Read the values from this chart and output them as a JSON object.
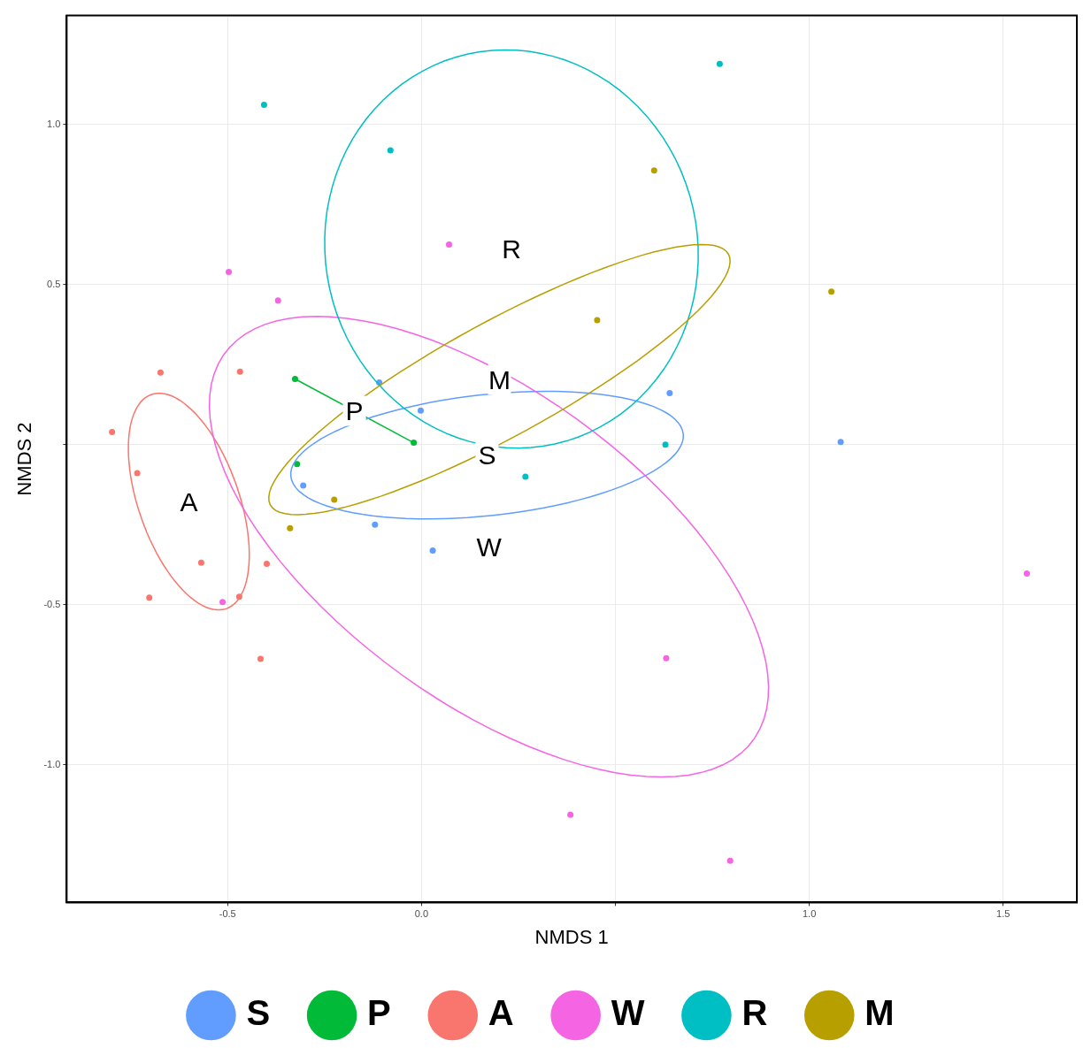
{
  "chart_data": {
    "type": "scatter",
    "xlabel": "NMDS 1",
    "ylabel": "NMDS 2",
    "xlim": [
      -0.915,
      1.69
    ],
    "ylim": [
      -1.43,
      1.34
    ],
    "xticks": [
      -0.5,
      {
        "value": 0,
        "label": "0.0"
      },
      {
        "value": 0.5,
        "label": null
      },
      {
        "value": 1,
        "label": "1.0"
      },
      1.5
    ],
    "yticks": [
      {
        "value": -1,
        "label": "-1.0"
      },
      -0.5,
      {
        "value": 0,
        "label": null
      },
      0.5,
      {
        "value": 1,
        "label": "1.0"
      }
    ],
    "grid": true,
    "legend": "bottom",
    "series": [
      {
        "name": "S",
        "marker": "circle",
        "color": "#619cff",
        "x": [
          -0.109,
          -0.002,
          0.64,
          1.081,
          -0.305,
          -0.12,
          0.029
        ],
        "values": [
          0.194,
          0.106,
          0.161,
          0.008,
          -0.128,
          -0.25,
          -0.331
        ]
      },
      {
        "name": "P",
        "marker": "circle",
        "color": "#00ba38",
        "x": [
          -0.326,
          -0.02,
          -0.321
        ],
        "values": [
          0.205,
          0.006,
          -0.061
        ]
      },
      {
        "name": "A",
        "marker": "circle",
        "color": "#f8766d",
        "x": [
          -0.798,
          -0.673,
          -0.468,
          -0.733,
          -0.568,
          -0.702,
          -0.47,
          -0.399,
          -0.415
        ],
        "values": [
          0.039,
          0.225,
          0.228,
          -0.089,
          -0.369,
          -0.478,
          -0.475,
          -0.372,
          -0.669
        ]
      },
      {
        "name": "W",
        "marker": "circle",
        "color": "#f564e3",
        "x": [
          -0.497,
          -0.37,
          0.071,
          -0.513,
          0.384,
          0.796,
          0.631,
          1.561
        ],
        "values": [
          0.539,
          0.45,
          0.625,
          -0.492,
          -1.156,
          -1.3,
          -0.667,
          -0.403
        ]
      },
      {
        "name": "R",
        "marker": "circle",
        "color": "#00bfc4",
        "x": [
          -0.406,
          -0.08,
          0.769,
          0.629,
          0.268
        ],
        "values": [
          1.061,
          0.919,
          1.189,
          0.0,
          -0.1
        ]
      },
      {
        "name": "M",
        "marker": "circle",
        "color": "#b79f00",
        "x": [
          0.6,
          0.453,
          1.057,
          -0.225,
          -0.339
        ],
        "values": [
          0.856,
          0.389,
          0.478,
          -0.172,
          -0.261
        ]
      },
      {
        "type": "line",
        "marker": "none",
        "color": "#00ba38",
        "x": [
          -0.326,
          -0.02
        ],
        "values": [
          0.205,
          0.006
        ]
      }
    ],
    "annotations": [
      "S",
      "P",
      "A",
      "W",
      "R",
      "M"
    ]
  }
}
